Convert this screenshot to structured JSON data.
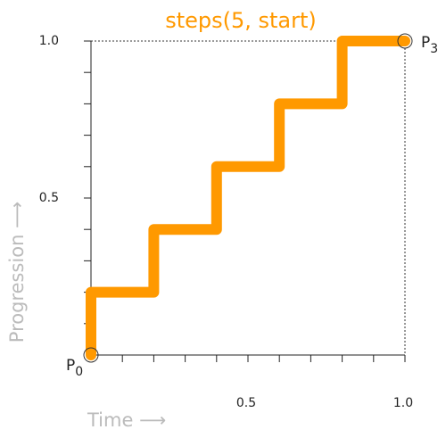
{
  "chart_data": {
    "type": "line",
    "title": "steps(5, start)",
    "title_color": "#ff9900",
    "x_label": "Time ⟶",
    "y_label": "Progression ⟶",
    "series": [
      {
        "color": "#ff9900",
        "x": [
          0,
          0,
          0.2,
          0.2,
          0.4,
          0.4,
          0.6,
          0.6,
          0.8,
          0.8,
          1
        ],
        "values": [
          0,
          0.2,
          0.2,
          0.4,
          0.4,
          0.6,
          0.6,
          0.8,
          0.8,
          1,
          1
        ]
      }
    ],
    "xlim": [
      0,
      1
    ],
    "ylim": [
      0,
      1
    ],
    "xticks": [
      0.5,
      {
        "value": 1,
        "label": "1.0"
      }
    ],
    "yticks": [
      0.5,
      {
        "value": 1,
        "label": "1.0"
      }
    ],
    "xminorticks": [
      0.1,
      0.2,
      0.3,
      0.4,
      0.5,
      0.6,
      0.7,
      0.8,
      0.9,
      1
    ],
    "yminorticks": [
      0.1,
      0.2,
      0.3,
      0.4,
      0.5,
      0.6,
      0.7,
      0.8,
      0.9,
      1
    ],
    "annotations": [
      {
        "text": "P",
        "subscript": "0"
      },
      {
        "text": "P",
        "subscript": "3"
      }
    ]
  }
}
